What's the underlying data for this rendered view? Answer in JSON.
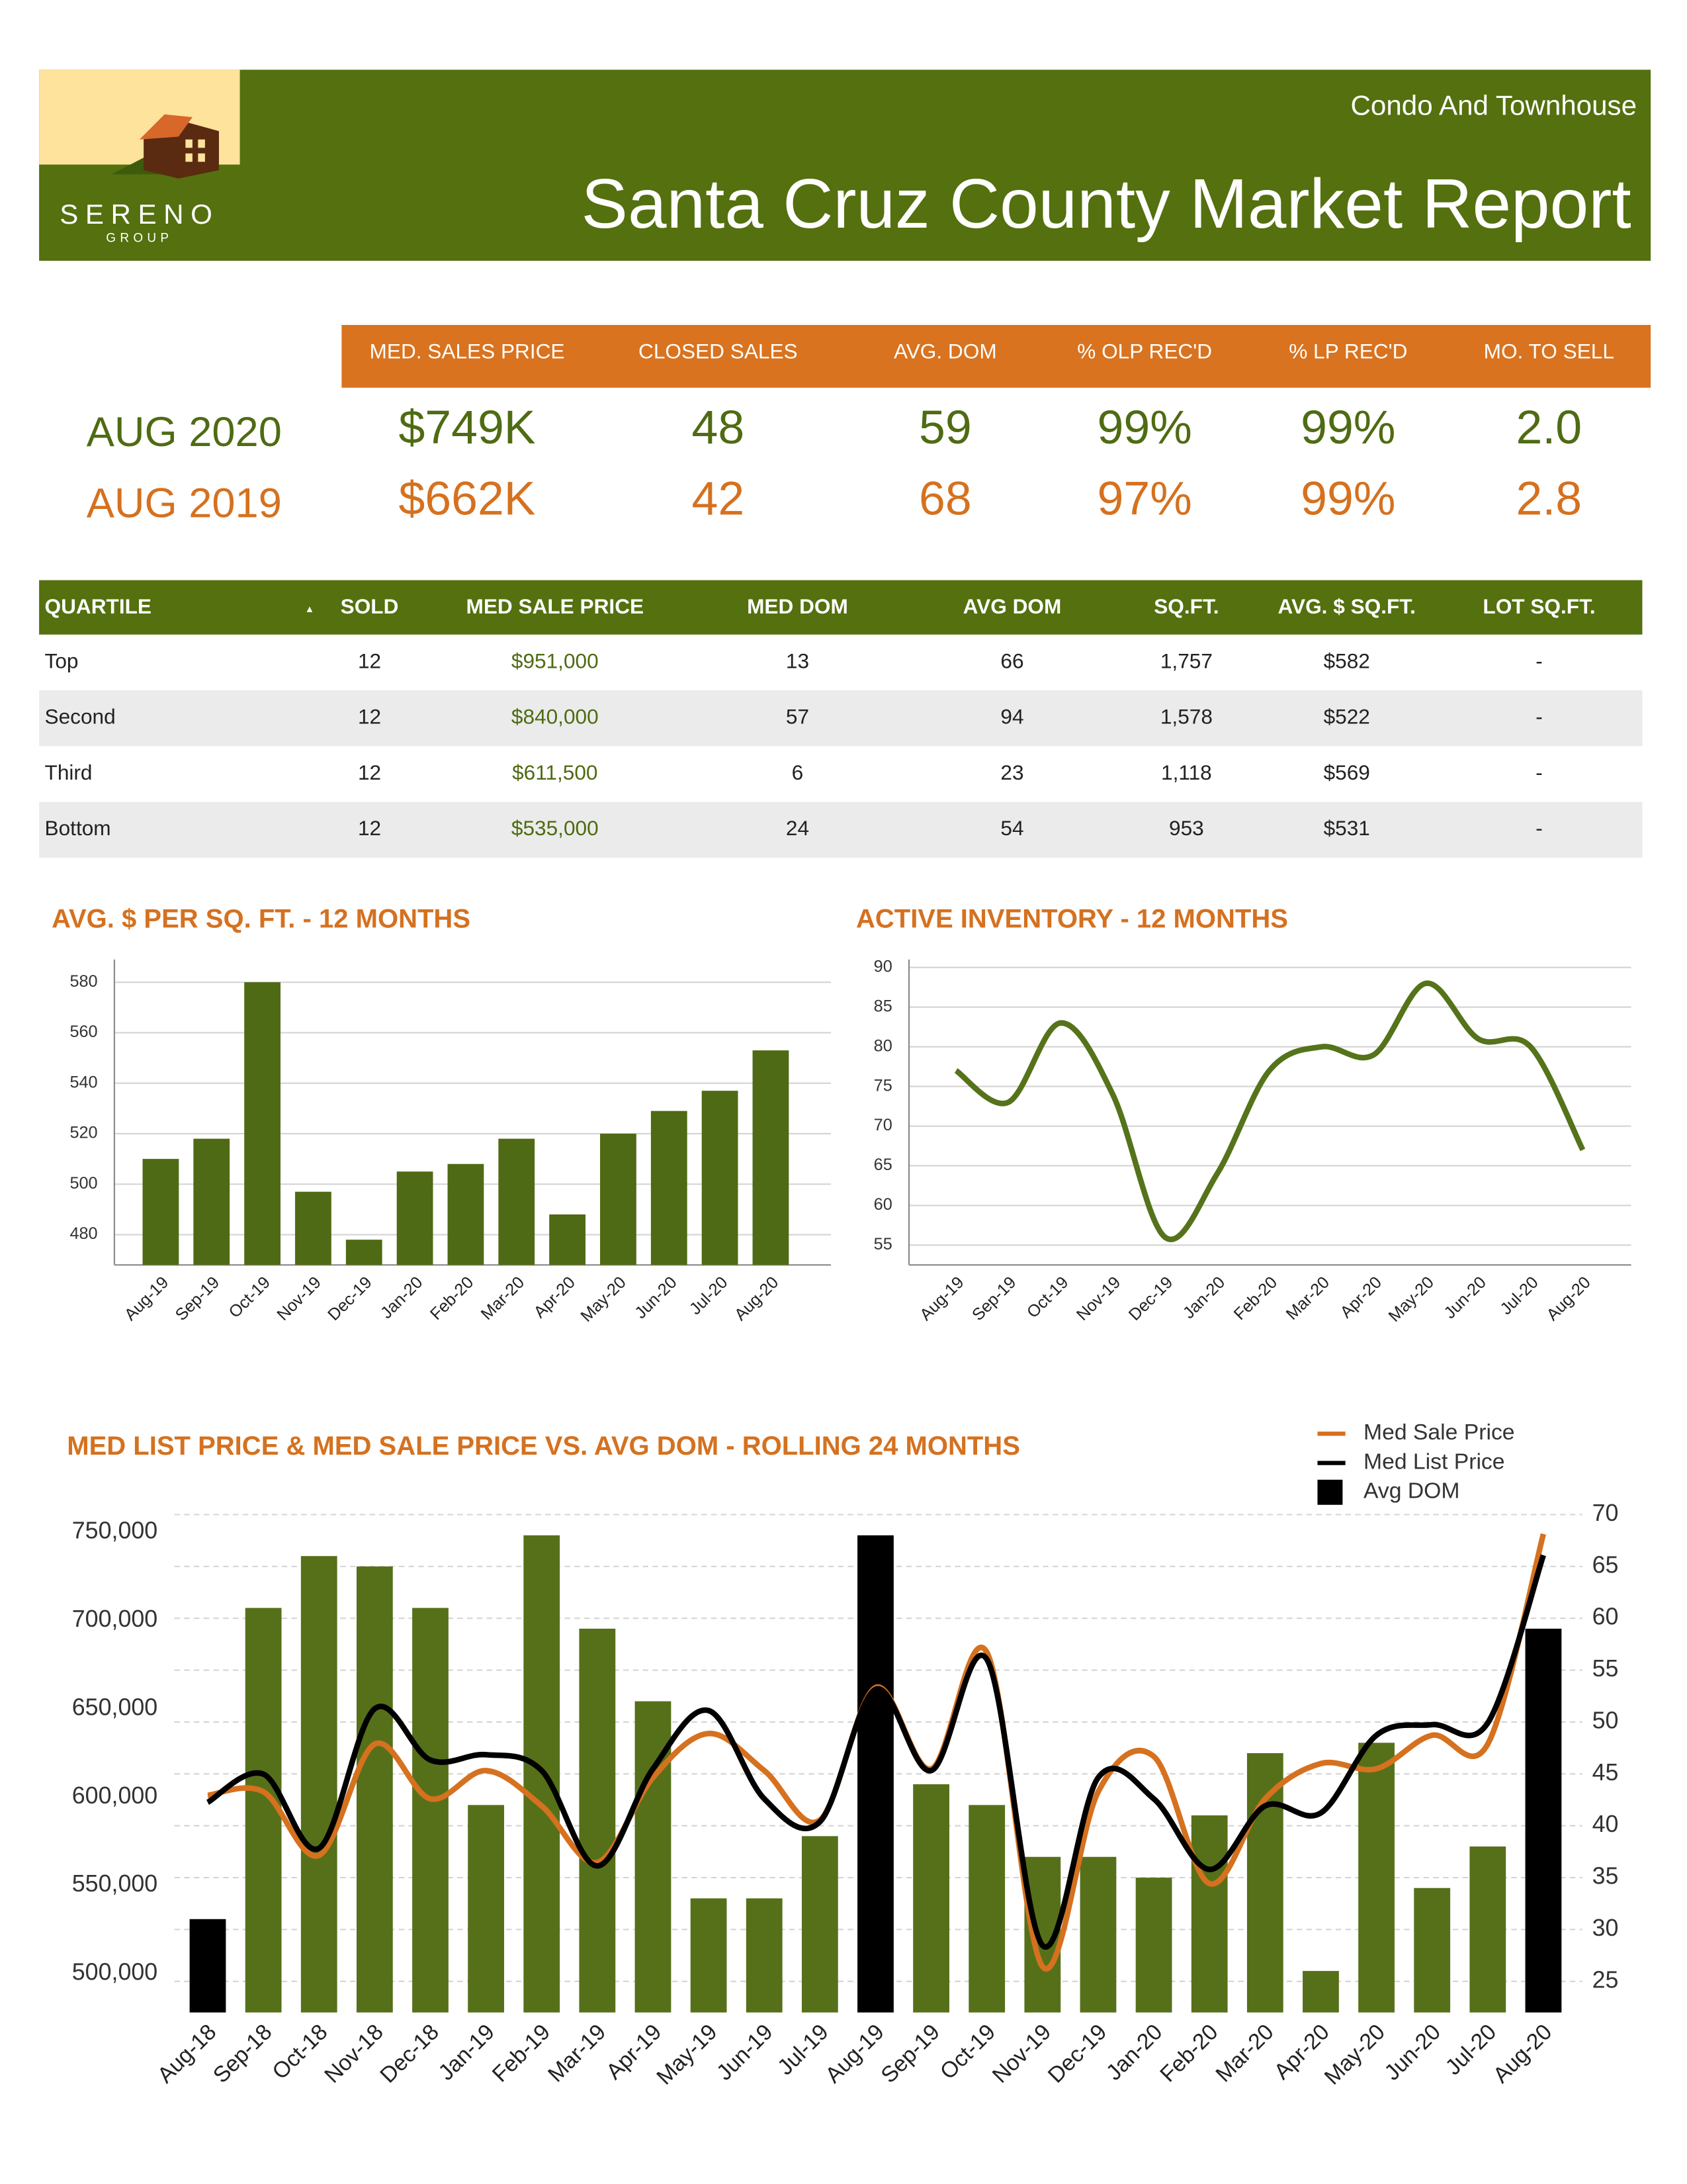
{
  "header": {
    "logo": "SERENO",
    "logo_sub": "GROUP",
    "subtitle": "Condo And Townhouse",
    "title": "Santa Cruz County Market Report"
  },
  "summary": {
    "headers": [
      "MED. SALES PRICE",
      "CLOSED SALES",
      "AVG. DOM",
      "% OLP REC'D",
      "% LP REC'D",
      "MO. TO SELL"
    ],
    "rows": [
      {
        "label": "AUG 2020",
        "color": "#4f6b13",
        "values": [
          "$749K",
          "48",
          "59",
          "99%",
          "99%",
          "2.0"
        ]
      },
      {
        "label": "AUG 2019",
        "color": "#d5711f",
        "values": [
          "$662K",
          "42",
          "68",
          "97%",
          "99%",
          "2.8"
        ]
      }
    ]
  },
  "table": {
    "headers": [
      "QUARTILE",
      "SOLD",
      "MED SALE PRICE",
      "MED DOM",
      "AVG DOM",
      "SQ.FT.",
      "AVG. $ SQ.FT.",
      "LOT SQ.FT."
    ],
    "rows": [
      [
        "Top",
        "12",
        "$951,000",
        "13",
        "66",
        "1,757",
        "$582",
        "-"
      ],
      [
        "Second",
        "12",
        "$840,000",
        "57",
        "94",
        "1,578",
        "$522",
        "-"
      ],
      [
        "Third",
        "12",
        "$611,500",
        "6",
        "23",
        "1,118",
        "$569",
        "-"
      ],
      [
        "Bottom",
        "12",
        "$535,000",
        "24",
        "54",
        "953",
        "$531",
        "-"
      ]
    ]
  },
  "chart_data": [
    {
      "type": "bar",
      "title": "AVG. $ PER SQ. FT. - 12 MONTHS",
      "categories": [
        "Aug-19",
        "Sep-19",
        "Oct-19",
        "Nov-19",
        "Dec-19",
        "Jan-20",
        "Feb-20",
        "Mar-20",
        "Apr-20",
        "May-20",
        "Jun-20",
        "Jul-20",
        "Aug-20"
      ],
      "values": [
        510,
        518,
        580,
        497,
        478,
        505,
        508,
        518,
        488,
        520,
        529,
        537,
        553
      ],
      "color": "#4f6a14",
      "ylim": [
        468,
        589
      ],
      "yticks": [
        480,
        500,
        520,
        540,
        560,
        580
      ],
      "grid": true
    },
    {
      "type": "line",
      "title": "ACTIVE INVENTORY - 12 MONTHS",
      "categories": [
        "Aug-19",
        "Sep-19",
        "Oct-19",
        "Nov-19",
        "Dec-19",
        "Jan-20",
        "Feb-20",
        "Mar-20",
        "Apr-20",
        "May-20",
        "Jun-20",
        "Jul-20",
        "Aug-20"
      ],
      "values": [
        77,
        73,
        83,
        74,
        56,
        64,
        77,
        80,
        79,
        88,
        81,
        80,
        67
      ],
      "color": "#55731a",
      "ylim": [
        52.5,
        91
      ],
      "yticks": [
        55,
        60,
        65,
        70,
        75,
        80,
        85,
        90
      ],
      "grid": true
    },
    {
      "type": "combo",
      "title": "MED LIST PRICE & MED SALE PRICE VS. AVG DOM  - ROLLING 24 MONTHS",
      "categories": [
        "Aug-18",
        "Sep-18",
        "Oct-18",
        "Nov-18",
        "Dec-18",
        "Jan-19",
        "Feb-19",
        "Mar-19",
        "Apr-19",
        "May-19",
        "Jun-19",
        "Jul-19",
        "Aug-19",
        "Sep-19",
        "Oct-19",
        "Nov-19",
        "Dec-19",
        "Jan-20",
        "Feb-20",
        "Mar-20",
        "Apr-20",
        "May-20",
        "Jun-20",
        "Jul-20",
        "Aug-20"
      ],
      "series": [
        {
          "name": "Med Sale Price",
          "type": "line",
          "color": "#d5711f",
          "values": [
            601000,
            603000,
            567000,
            630000,
            599000,
            615000,
            595000,
            563000,
            611000,
            636000,
            615000,
            587000,
            662000,
            616000,
            682000,
            504000,
            603000,
            623000,
            551000,
            599000,
            619000,
            616000,
            635000,
            630000,
            749000
          ]
        },
        {
          "name": "Med List Price",
          "type": "line",
          "color": "#000000",
          "values": [
            597000,
            613000,
            571000,
            650000,
            621000,
            624000,
            615000,
            561000,
            616000,
            649000,
            599000,
            586000,
            661000,
            615000,
            678000,
            516000,
            611000,
            599000,
            559000,
            595000,
            591000,
            635000,
            641000,
            642000,
            737000
          ]
        },
        {
          "name": "Avg DOM",
          "type": "bar",
          "axis": "y2",
          "color": "#000000",
          "values": [
            31,
            61,
            66,
            65,
            61,
            42,
            68,
            59,
            52,
            33,
            33,
            39,
            68,
            44,
            42,
            37,
            37,
            35,
            41,
            47,
            26,
            48,
            34,
            38,
            59
          ],
          "colors": [
            "#000000",
            "#56701a",
            "#56701a",
            "#56701a",
            "#56701a",
            "#56701a",
            "#56701a",
            "#56701a",
            "#56701a",
            "#56701a",
            "#56701a",
            "#56701a",
            "#000000",
            "#56701a",
            "#56701a",
            "#56701a",
            "#56701a",
            "#56701a",
            "#56701a",
            "#56701a",
            "#56701a",
            "#56701a",
            "#56701a",
            "#56701a",
            "#000000"
          ]
        }
      ],
      "ylim": [
        478000,
        760000
      ],
      "yticks": [
        {
          "value": 500000,
          "label": "500,000"
        },
        {
          "value": 550000,
          "label": "550,000"
        },
        {
          "value": 600000,
          "label": "600,000"
        },
        {
          "value": 650000,
          "label": "650,000"
        },
        {
          "value": 700000,
          "label": "700,000"
        },
        {
          "value": 750000,
          "label": "750,000"
        }
      ],
      "y2lim": [
        22,
        70
      ],
      "y2ticks": [
        25,
        30,
        35,
        40,
        45,
        50,
        55,
        60,
        65,
        70
      ],
      "grid": "y2",
      "legend": "top-right"
    }
  ]
}
